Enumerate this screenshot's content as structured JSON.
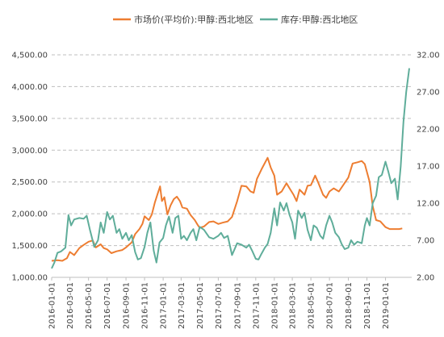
{
  "chart_data": {
    "type": "line",
    "legend_position": "top",
    "grid": "horizontal-dashed",
    "x_ticks": [
      "2016-01-01",
      "2016-03-01",
      "2016-05-01",
      "2016-07-01",
      "2016-09-01",
      "2016-11-01",
      "2017-01-01",
      "2017-03-01",
      "2017-05-01",
      "2017-07-01",
      "2017-09-01",
      "2017-11-01",
      "2018-01-01",
      "2018-03-01",
      "2018-05-01",
      "2018-07-01",
      "2018-09-01",
      "2018-11-01",
      "2019-01-01"
    ],
    "y_left": {
      "min": 1000,
      "max": 4500,
      "ticks": [
        1000,
        1500,
        2000,
        2500,
        3000,
        3500,
        4000,
        4500
      ],
      "tick_labels": [
        "1,000.00",
        "1,500.00",
        "2,000.00",
        "2,500.00",
        "3,000.00",
        "3,500.00",
        "4,000.00",
        "4,500.00"
      ]
    },
    "y_right": {
      "min": 2,
      "max": 32,
      "ticks": [
        2,
        7,
        12,
        17,
        22,
        27,
        32
      ],
      "tick_labels": [
        "2.00",
        "7.00",
        "12.00",
        "17.00",
        "22.00",
        "27.00",
        "32.00"
      ]
    },
    "series": [
      {
        "name": "市场价(平均价):甲醇:西北地区",
        "axis": "left",
        "color": "#ED7D31",
        "points": [
          [
            "2016-01-01",
            1260
          ],
          [
            "2016-01-20",
            1270
          ],
          [
            "2016-02-05",
            1260
          ],
          [
            "2016-02-20",
            1300
          ],
          [
            "2016-03-01",
            1400
          ],
          [
            "2016-03-15",
            1350
          ],
          [
            "2016-04-01",
            1460
          ],
          [
            "2016-04-15",
            1510
          ],
          [
            "2016-05-01",
            1560
          ],
          [
            "2016-05-15",
            1580
          ],
          [
            "2016-05-25",
            1470
          ],
          [
            "2016-06-10",
            1520
          ],
          [
            "2016-06-20",
            1460
          ],
          [
            "2016-07-01",
            1440
          ],
          [
            "2016-07-15",
            1380
          ],
          [
            "2016-08-01",
            1410
          ],
          [
            "2016-08-20",
            1430
          ],
          [
            "2016-09-01",
            1470
          ],
          [
            "2016-09-20",
            1550
          ],
          [
            "2016-10-01",
            1680
          ],
          [
            "2016-10-15",
            1760
          ],
          [
            "2016-10-25",
            1840
          ],
          [
            "2016-11-01",
            1960
          ],
          [
            "2016-11-15",
            1900
          ],
          [
            "2016-11-25",
            1990
          ],
          [
            "2016-12-05",
            2180
          ],
          [
            "2016-12-15",
            2330
          ],
          [
            "2016-12-22",
            2430
          ],
          [
            "2016-12-28",
            2200
          ],
          [
            "2017-01-05",
            2260
          ],
          [
            "2017-01-15",
            1990
          ],
          [
            "2017-01-25",
            2130
          ],
          [
            "2017-02-05",
            2230
          ],
          [
            "2017-02-15",
            2270
          ],
          [
            "2017-02-25",
            2200
          ],
          [
            "2017-03-05",
            2100
          ],
          [
            "2017-03-20",
            2080
          ],
          [
            "2017-04-01",
            1980
          ],
          [
            "2017-04-15",
            1900
          ],
          [
            "2017-04-25",
            1820
          ],
          [
            "2017-05-01",
            1780
          ],
          [
            "2017-05-15",
            1800
          ],
          [
            "2017-06-01",
            1870
          ],
          [
            "2017-06-15",
            1880
          ],
          [
            "2017-07-01",
            1840
          ],
          [
            "2017-07-15",
            1860
          ],
          [
            "2017-08-01",
            1880
          ],
          [
            "2017-08-15",
            1950
          ],
          [
            "2017-09-01",
            2200
          ],
          [
            "2017-09-15",
            2440
          ],
          [
            "2017-10-01",
            2430
          ],
          [
            "2017-10-15",
            2350
          ],
          [
            "2017-10-25",
            2330
          ],
          [
            "2017-11-05",
            2550
          ],
          [
            "2017-11-20",
            2700
          ],
          [
            "2017-12-01",
            2800
          ],
          [
            "2017-12-10",
            2880
          ],
          [
            "2017-12-20",
            2730
          ],
          [
            "2018-01-01",
            2600
          ],
          [
            "2018-01-10",
            2300
          ],
          [
            "2018-01-25",
            2350
          ],
          [
            "2018-02-10",
            2480
          ],
          [
            "2018-02-20",
            2400
          ],
          [
            "2018-03-05",
            2300
          ],
          [
            "2018-03-15",
            2200
          ],
          [
            "2018-03-25",
            2380
          ],
          [
            "2018-04-10",
            2300
          ],
          [
            "2018-04-20",
            2440
          ],
          [
            "2018-05-01",
            2450
          ],
          [
            "2018-05-15",
            2600
          ],
          [
            "2018-05-25",
            2490
          ],
          [
            "2018-06-10",
            2300
          ],
          [
            "2018-06-20",
            2250
          ],
          [
            "2018-07-01",
            2350
          ],
          [
            "2018-07-15",
            2400
          ],
          [
            "2018-08-01",
            2350
          ],
          [
            "2018-08-15",
            2450
          ],
          [
            "2018-09-01",
            2570
          ],
          [
            "2018-09-15",
            2790
          ],
          [
            "2018-10-01",
            2810
          ],
          [
            "2018-10-15",
            2830
          ],
          [
            "2018-10-25",
            2780
          ],
          [
            "2018-11-10",
            2500
          ],
          [
            "2018-11-20",
            2120
          ],
          [
            "2018-12-01",
            1900
          ],
          [
            "2018-12-15",
            1880
          ],
          [
            "2019-01-01",
            1790
          ],
          [
            "2019-01-15",
            1760
          ],
          [
            "2019-02-01",
            1760
          ],
          [
            "2019-02-15",
            1760
          ],
          [
            "2019-02-25",
            1770
          ]
        ]
      },
      {
        "name": "库存:甲醇:西北地区",
        "axis": "right",
        "color": "#5FAD9A",
        "points": [
          [
            "2016-01-01",
            3.2
          ],
          [
            "2016-01-10",
            4.0
          ],
          [
            "2016-01-20",
            5.3
          ],
          [
            "2016-02-01",
            5.5
          ],
          [
            "2016-02-15",
            6.0
          ],
          [
            "2016-02-25",
            10.4
          ],
          [
            "2016-03-05",
            9.0
          ],
          [
            "2016-03-15",
            9.8
          ],
          [
            "2016-04-01",
            10.0
          ],
          [
            "2016-04-15",
            9.9
          ],
          [
            "2016-04-25",
            10.3
          ],
          [
            "2016-05-05",
            8.5
          ],
          [
            "2016-05-20",
            6.1
          ],
          [
            "2016-06-01",
            7.0
          ],
          [
            "2016-06-10",
            9.4
          ],
          [
            "2016-06-20",
            8.0
          ],
          [
            "2016-07-01",
            10.8
          ],
          [
            "2016-07-10",
            9.8
          ],
          [
            "2016-07-20",
            10.3
          ],
          [
            "2016-08-01",
            8.0
          ],
          [
            "2016-08-10",
            8.5
          ],
          [
            "2016-08-20",
            7.2
          ],
          [
            "2016-09-01",
            8.0
          ],
          [
            "2016-09-10",
            7.0
          ],
          [
            "2016-09-20",
            7.7
          ],
          [
            "2016-10-01",
            5.4
          ],
          [
            "2016-10-10",
            4.4
          ],
          [
            "2016-10-20",
            4.6
          ],
          [
            "2016-11-01",
            6.1
          ],
          [
            "2016-11-10",
            8.0
          ],
          [
            "2016-11-20",
            9.4
          ],
          [
            "2016-12-01",
            5.6
          ],
          [
            "2016-12-10",
            4.0
          ],
          [
            "2016-12-20",
            6.7
          ],
          [
            "2017-01-01",
            7.3
          ],
          [
            "2017-01-10",
            9.0
          ],
          [
            "2017-01-20",
            10.2
          ],
          [
            "2017-02-01",
            8.0
          ],
          [
            "2017-02-10",
            10.0
          ],
          [
            "2017-02-20",
            10.3
          ],
          [
            "2017-03-01",
            7.2
          ],
          [
            "2017-03-10",
            7.6
          ],
          [
            "2017-03-20",
            7.0
          ],
          [
            "2017-04-01",
            8.0
          ],
          [
            "2017-04-10",
            8.5
          ],
          [
            "2017-04-20",
            7.0
          ],
          [
            "2017-05-01",
            8.8
          ],
          [
            "2017-05-15",
            8.4
          ],
          [
            "2017-06-01",
            7.4
          ],
          [
            "2017-06-15",
            7.2
          ],
          [
            "2017-07-01",
            7.6
          ],
          [
            "2017-07-10",
            8.0
          ],
          [
            "2017-07-20",
            7.3
          ],
          [
            "2017-08-01",
            7.6
          ],
          [
            "2017-08-15",
            5.0
          ],
          [
            "2017-09-01",
            6.6
          ],
          [
            "2017-09-15",
            6.4
          ],
          [
            "2017-10-01",
            6.0
          ],
          [
            "2017-10-10",
            6.4
          ],
          [
            "2017-10-20",
            5.6
          ],
          [
            "2017-11-01",
            4.5
          ],
          [
            "2017-11-10",
            4.4
          ],
          [
            "2017-11-20",
            5.2
          ],
          [
            "2017-12-01",
            6.0
          ],
          [
            "2017-12-10",
            6.5
          ],
          [
            "2017-12-20",
            8.0
          ],
          [
            "2018-01-01",
            11.3
          ],
          [
            "2018-01-10",
            9.0
          ],
          [
            "2018-01-20",
            12.1
          ],
          [
            "2018-02-01",
            11.0
          ],
          [
            "2018-02-10",
            12.0
          ],
          [
            "2018-02-20",
            10.4
          ],
          [
            "2018-03-01",
            9.4
          ],
          [
            "2018-03-10",
            7.2
          ],
          [
            "2018-03-20",
            11.0
          ],
          [
            "2018-04-01",
            10.0
          ],
          [
            "2018-04-10",
            10.7
          ],
          [
            "2018-04-20",
            8.4
          ],
          [
            "2018-05-01",
            7.0
          ],
          [
            "2018-05-10",
            9.0
          ],
          [
            "2018-05-20",
            8.7
          ],
          [
            "2018-06-01",
            7.6
          ],
          [
            "2018-06-10",
            7.2
          ],
          [
            "2018-06-20",
            9.0
          ],
          [
            "2018-07-01",
            10.3
          ],
          [
            "2018-07-10",
            9.4
          ],
          [
            "2018-07-20",
            8.0
          ],
          [
            "2018-08-01",
            7.4
          ],
          [
            "2018-08-10",
            6.5
          ],
          [
            "2018-08-20",
            5.8
          ],
          [
            "2018-09-01",
            6.0
          ],
          [
            "2018-09-10",
            7.0
          ],
          [
            "2018-09-20",
            6.4
          ],
          [
            "2018-10-01",
            6.8
          ],
          [
            "2018-10-15",
            6.6
          ],
          [
            "2018-10-25",
            9.0
          ],
          [
            "2018-11-01",
            10.0
          ],
          [
            "2018-11-10",
            9.0
          ],
          [
            "2018-11-20",
            12.0
          ],
          [
            "2018-12-01",
            13.0
          ],
          [
            "2018-12-10",
            15.5
          ],
          [
            "2018-12-20",
            15.8
          ],
          [
            "2019-01-01",
            17.6
          ],
          [
            "2019-01-10",
            16.3
          ],
          [
            "2019-01-20",
            14.7
          ],
          [
            "2019-02-01",
            15.3
          ],
          [
            "2019-02-10",
            12.5
          ],
          [
            "2019-02-20",
            17.0
          ],
          [
            "2019-03-01",
            23.0
          ],
          [
            "2019-03-10",
            27.0
          ],
          [
            "2019-03-20",
            30.2
          ]
        ]
      }
    ]
  }
}
